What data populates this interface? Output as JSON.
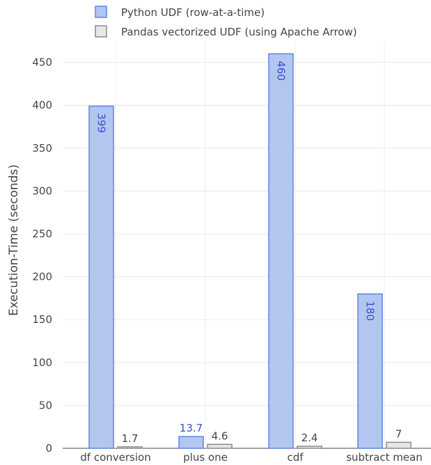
{
  "chart_data": {
    "type": "bar",
    "title": "",
    "xlabel": "",
    "ylabel": "Execution-Time (seconds)",
    "ylim": [
      0,
      470
    ],
    "yticks": [
      0,
      50,
      100,
      150,
      200,
      250,
      300,
      350,
      400,
      450
    ],
    "grid": true,
    "legend_position": "top-left",
    "categories": [
      "df conversion",
      "plus one",
      "cdf",
      "subtract mean"
    ],
    "series": [
      {
        "name": "Python UDF (row-at-a-time)",
        "values": [
          399,
          13.7,
          460,
          180
        ],
        "labels": [
          "399",
          "13.7",
          "460",
          "180"
        ],
        "fill": "#b3c6ef",
        "stroke": "#5b86e5",
        "label_color": "#3a4fd0"
      },
      {
        "name": "Pandas vectorized UDF (using Apache Arrow)",
        "values": [
          1.7,
          4.6,
          2.4,
          7
        ],
        "labels": [
          "1.7",
          "4.6",
          "2.4",
          "7"
        ],
        "fill": "#e6e6e6",
        "stroke": "#8c8c8c",
        "label_color": "#444444"
      }
    ]
  }
}
